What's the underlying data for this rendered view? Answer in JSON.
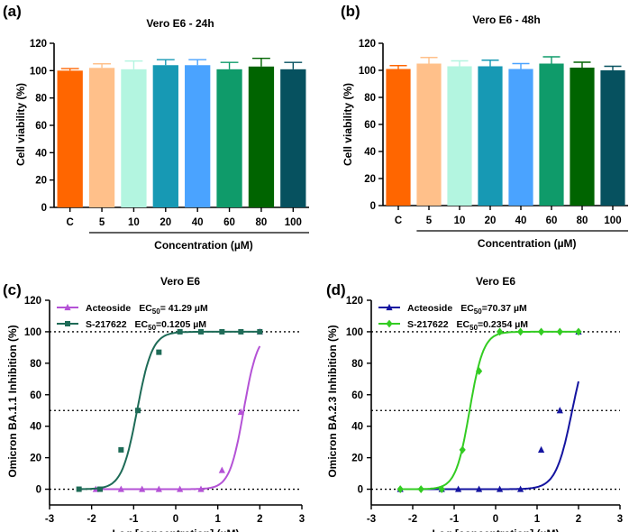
{
  "panels": [
    {
      "label": "(a)",
      "chart_data": {
        "type": "bar",
        "title": "Vero E6 - 24h",
        "ylabel": "Cell viability (%)",
        "xlabel": "Concentration  (µM)",
        "categories": [
          "C",
          "5",
          "10",
          "20",
          "40",
          "60",
          "80",
          "100"
        ],
        "values": [
          100,
          102,
          101,
          104,
          104,
          101,
          103,
          101
        ],
        "errors": [
          1.5,
          3,
          6,
          4,
          4,
          5,
          6,
          5
        ],
        "colors": [
          "#ff6600",
          "#ffc08a",
          "#b3f5e0",
          "#1799b4",
          "#4aa3ff",
          "#0f9b6a",
          "#006400",
          "#06515f"
        ],
        "ylim": [
          0,
          120
        ],
        "yticks": [
          0,
          20,
          40,
          60,
          80,
          100,
          120
        ]
      }
    },
    {
      "label": "(b)",
      "chart_data": {
        "type": "bar",
        "title": "Vero E6 - 48h",
        "ylabel": "Cell viability (%)",
        "xlabel": "Concentration  (µM)",
        "categories": [
          "C",
          "5",
          "10",
          "20",
          "40",
          "60",
          "80",
          "100"
        ],
        "values": [
          101,
          105,
          103,
          103,
          101,
          105,
          102,
          100
        ],
        "errors": [
          2.5,
          4.5,
          4,
          4.5,
          4,
          5,
          4,
          3
        ],
        "colors": [
          "#ff6600",
          "#ffc08a",
          "#b3f5e0",
          "#1799b4",
          "#4aa3ff",
          "#0f9b6a",
          "#006400",
          "#06515f"
        ],
        "ylim": [
          0,
          120
        ],
        "yticks": [
          0,
          20,
          40,
          60,
          80,
          100,
          120
        ]
      }
    },
    {
      "label": "(c)",
      "chart_data": {
        "type": "scatter",
        "title": "Vero E6",
        "ylabel": "Omicron BA.1.1 Inhibition (%)",
        "xlabel": "Log [concentration] (µM)",
        "xlim": [
          -3,
          3
        ],
        "ylim": [
          -10,
          120
        ],
        "xticks": [
          -3,
          -2,
          -1,
          0,
          1,
          2,
          3
        ],
        "yticks": [
          0,
          20,
          40,
          60,
          80,
          100,
          120
        ],
        "hlines": [
          0,
          50,
          100
        ],
        "series": [
          {
            "name": "Acteoside",
            "ec50_label": "EC",
            "ec50_sub": "50",
            "ec50_value": "= 41.29 µM",
            "color": "#b452d6",
            "marker": "triangle",
            "x": [
              -1.9,
              -1.3,
              -0.8,
              -0.4,
              0.1,
              0.6,
              1.1,
              1.55,
              2.0
            ],
            "y": [
              0,
              0,
              0,
              0,
              0,
              0,
              12,
              49,
              100
            ],
            "curve": {
              "log_ec50": 1.616,
              "hill": 2.6
            }
          },
          {
            "name": "S-217622",
            "ec50_label": "EC",
            "ec50_sub": "50",
            "ec50_value": "=0.1205 µM",
            "color": "#1e6b57",
            "marker": "square",
            "x": [
              -2.3,
              -1.8,
              -1.3,
              -0.9,
              -0.4,
              0.1,
              0.6,
              1.1,
              1.55,
              2.0
            ],
            "y": [
              0,
              0,
              25,
              50,
              87,
              100,
              100,
              100,
              100,
              100
            ],
            "curve": {
              "log_ec50": -0.919,
              "hill": 2.4
            }
          }
        ]
      }
    },
    {
      "label": "(d)",
      "chart_data": {
        "type": "scatter",
        "title": "Vero E6",
        "ylabel": "Omicron BA.2.3 Inhibition (%)",
        "xlabel": "Log [concentration] (µM)",
        "xlim": [
          -3,
          3
        ],
        "ylim": [
          -10,
          120
        ],
        "xticks": [
          -3,
          -2,
          -1,
          0,
          1,
          2,
          3
        ],
        "yticks": [
          0,
          20,
          40,
          60,
          80,
          100,
          120
        ],
        "hlines": [
          0,
          50,
          100
        ],
        "series": [
          {
            "name": "Acteoside",
            "ec50_label": "EC",
            "ec50_sub": "50",
            "ec50_value": "=70.37 µM",
            "color": "#1414a0",
            "marker": "triangle",
            "x": [
              -2.3,
              -1.3,
              -0.9,
              -0.4,
              0.1,
              0.6,
              1.1,
              1.55,
              2.0
            ],
            "y": [
              0,
              0,
              0,
              0,
              0,
              0,
              25,
              50,
              100
            ],
            "curve": {
              "log_ec50": 1.847,
              "hill": 2.2
            }
          },
          {
            "name": "S-217622",
            "ec50_label": "EC",
            "ec50_sub": "50",
            "ec50_value": "=0.2354 µM",
            "color": "#33cc22",
            "marker": "diamond",
            "x": [
              -2.3,
              -1.8,
              -1.3,
              -0.8,
              -0.4,
              0.1,
              0.6,
              1.1,
              1.55,
              2.0
            ],
            "y": [
              0,
              0,
              0,
              25,
              75,
              100,
              100,
              100,
              100,
              100
            ],
            "curve": {
              "log_ec50": -0.628,
              "hill": 2.6
            }
          }
        ]
      }
    }
  ]
}
